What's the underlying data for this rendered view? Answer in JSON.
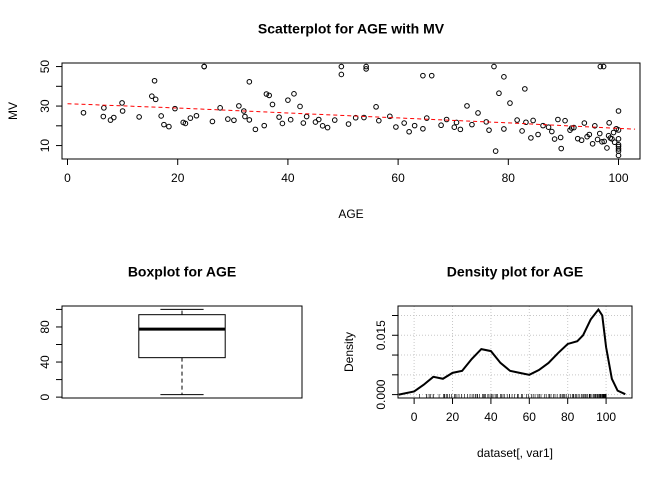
{
  "chart_data": [
    {
      "type": "scatter",
      "title": "Scatterplot for AGE with MV",
      "xlabel": "AGE",
      "ylabel": "MV",
      "color": "#000000",
      "x": [
        2.9,
        6.5,
        6.6,
        7.8,
        8.4,
        9.9,
        10,
        13,
        15.3,
        16,
        17,
        17.5,
        18.4,
        19.5,
        21,
        21.4,
        22.3,
        23.4,
        24.8,
        26.3,
        27.7,
        29.1,
        30.2,
        31.1,
        32,
        32.2,
        33,
        34.1,
        35.7,
        36.6,
        37.2,
        38.4,
        39,
        40,
        40.5,
        41.1,
        42.2,
        42.8,
        43.4,
        45,
        45.6,
        46.3,
        47.2,
        48.5,
        49.7,
        51,
        52.3,
        53.8,
        54.2,
        56,
        56.5,
        58.5,
        59.6,
        61.1,
        62,
        63,
        64.5,
        65.2,
        66.1,
        67.8,
        68.8,
        70.2,
        70.6,
        71.3,
        72.5,
        73.4,
        74.5,
        76,
        76.5,
        77.7,
        78.3,
        79.2,
        80.3,
        81.6,
        82.5,
        83.2,
        84.1,
        84.5,
        85.4,
        86.3,
        87.3,
        87.9,
        88.4,
        89,
        89.5,
        90.3,
        91.2,
        91.9,
        92.6,
        93.3,
        93.8,
        94.3,
        94.7,
        95.3,
        95.7,
        96.2,
        96.6,
        97,
        97.4,
        97.9,
        98.2,
        98.5,
        98.8,
        99.1,
        99.3,
        99.6,
        100,
        100,
        100,
        100,
        100,
        100,
        100,
        100,
        24.8,
        33,
        49.7,
        54.2,
        64.5,
        79.2,
        83,
        96.7,
        98.3,
        15.8,
        36.1,
        91.5,
        89.6,
        77.4,
        97.3
      ],
      "values": [
        26.6,
        24.7,
        29.1,
        22.9,
        24.2,
        31.6,
        27.5,
        24.5,
        35,
        33.4,
        25,
        20.6,
        19.6,
        28.7,
        21.7,
        21.2,
        23.9,
        25.1,
        50,
        22.2,
        29.1,
        23.4,
        22.8,
        30.1,
        27.5,
        24.7,
        23,
        18.2,
        20.1,
        35.4,
        30.8,
        24.4,
        21.2,
        33,
        23.1,
        36.2,
        29.8,
        21.4,
        24.7,
        21.9,
        23.2,
        20,
        19.1,
        22.9,
        46,
        20.9,
        24.1,
        24.2,
        50,
        29.6,
        22.6,
        24.8,
        19.4,
        21.4,
        17,
        20.1,
        18.5,
        23.9,
        45.4,
        20.3,
        23.2,
        19.3,
        21.7,
        18.2,
        30.1,
        20.6,
        26.5,
        22,
        17.8,
        7.2,
        36.5,
        18.4,
        31.5,
        22.9,
        17.4,
        21.8,
        13.9,
        22.7,
        15.6,
        20.1,
        19.3,
        17.1,
        13.3,
        23.2,
        14.1,
        22.6,
        17.8,
        19.1,
        13.5,
        12.7,
        21.4,
        14.5,
        15.6,
        10.9,
        20,
        13.1,
        16.1,
        11.9,
        12.1,
        8.8,
        15,
        13.8,
        13.4,
        16.6,
        11.7,
        18.5,
        9.5,
        5,
        17.9,
        13.4,
        27.5,
        7.2,
        10.4,
        8.3,
        50,
        42.3,
        50,
        48.8,
        45.4,
        44.8,
        38.7,
        50,
        21.5,
        42.8,
        36.1,
        18.9,
        8.5,
        50,
        50
      ],
      "lines": [
        {
          "x": [
            0,
            20,
            40,
            60,
            80,
            100,
            103
          ],
          "values": [
            31.2,
            29,
            26.5,
            24,
            21.5,
            18.7,
            18.3
          ],
          "color": "#ff0000",
          "dashed": true
        }
      ],
      "xlim": [
        -1,
        103.9
      ],
      "xticks": [
        0,
        20,
        40,
        60,
        80,
        100
      ],
      "ylim": [
        3.2,
        51.8
      ],
      "yticks": [
        10,
        30,
        50
      ],
      "yminor": [
        20,
        40
      ]
    },
    {
      "type": "box",
      "title": "Boxplot for  AGE",
      "min": 2.9,
      "q1": 45,
      "median": 77.5,
      "q3": 94,
      "max": 100,
      "ylim": [
        -1,
        103.9
      ],
      "yticks": [
        0,
        40,
        80
      ],
      "yminor": [
        20,
        60,
        100
      ]
    },
    {
      "type": "line",
      "title": "Density plot for AGE",
      "xlabel": "dataset[, var1]",
      "ylabel": "Density",
      "color": "#000000",
      "grid": true,
      "rug": true,
      "x": [
        -8,
        0,
        5,
        10,
        15,
        20,
        25,
        30,
        35,
        40,
        45,
        50,
        55,
        60,
        65,
        70,
        75,
        80,
        85,
        88,
        92,
        96,
        98,
        100,
        103,
        106,
        110
      ],
      "values": [
        0,
        0.0008,
        0.0025,
        0.0045,
        0.004,
        0.0055,
        0.006,
        0.009,
        0.0115,
        0.011,
        0.008,
        0.006,
        0.0055,
        0.005,
        0.0062,
        0.008,
        0.0105,
        0.0128,
        0.0135,
        0.015,
        0.019,
        0.0215,
        0.02,
        0.012,
        0.004,
        0.001,
        0.0001
      ],
      "xlim": [
        -8.4,
        113.5
      ],
      "xticks": [
        0,
        20,
        40,
        60,
        80,
        100
      ],
      "ylim": [
        -0.00086,
        0.0224
      ],
      "yticks": [
        {
          "value": 0,
          "label": "0.000"
        },
        {
          "value": 0.015,
          "label": "0.015"
        }
      ],
      "yminor": [
        0.005,
        0.01,
        0.02
      ]
    }
  ]
}
